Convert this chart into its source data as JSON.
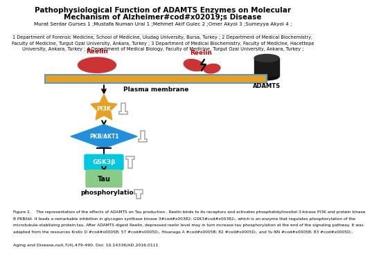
{
  "title_line1": "Pathophysiological Function of ADAMTS Enzymes on Molecular",
  "title_line2": "Mechanism of Alzheimer#cod#x02019;s Disease",
  "authors": "Murat Serdar Gurses 1 ;Mustafa Numan Ural 1 ;Mehmet Akif Gulec 2 ;Omer Akyol 3 ;Sumeyya Akyol 4 ;",
  "affiliations_line1": "1 Department of Forensic Medicine, School of Medicine, Uludag University, Bursa, Turkey ; 2 Department of Medical Biochemistry,",
  "affiliations_line2": "Faculty of Medicine, Turgut Ozal University, Ankara, Turkey ; 3 Department of Medical Biochemistry, Faculty of Medicine, Hacettepe",
  "affiliations_line3": "University, Ankara, Turkey ; 4 Department of Medical Biology, Faculty of Medicine, Turgut Ozal University, Ankara, Turkey ;",
  "caption_line1": "Figure 2.    The representation of the effects of ADAMTS on Tau production . Reelin binds to its receptors and activates phosphatidylinositol-3-kinase PI3K and protein kinase",
  "caption_line2": "B PKBAkt. It leads a remarkable inhibition in glycogen synthase kinase 3#cod#x00382; GSK3#cod#x00382;, which is an enzyme that regulates phosphorylation of the",
  "caption_line3": "microtubule-stabilizing protein tau. After ADAMTS digest Reelin, depressed reelin level may in turn increase tau phosphorylation at the end of the signaling pathway. It was",
  "caption_line4": "adapted from the resources Krstic D #cod#x0005B; 57 #cod#x0005D;, Hisanaga A #cod#x0005B; 82 #cod#x0005D;, and Yu NN #cod#x0005B; 83 #cod#x0005D;.",
  "journal": "Aging and Disease,null,7(4),479-490. Doi: 10.14336/AD.2016.0111",
  "bg_color": "#ffffff",
  "membrane_color": "#E8A020",
  "membrane_border": "#5599CC",
  "pi3k_color": "#E8A020",
  "pkb_color": "#2090DD",
  "gsk3b_color": "#00C8E0",
  "tau_color": "#88CC88",
  "reelin_color": "#CC3333",
  "adamts_color": "#111111",
  "arrow_color": "#111111",
  "hollow_arrow_color": "#aaaaaa",
  "reelin_label_color": "#CC0000",
  "membrane_label": "Plasma membrane",
  "pi3k_label": "PI3K",
  "pkb_label": "PKB/AKT1",
  "gsk3b_label": "GSK3β",
  "tau_label": "Tau",
  "phospho_label": "phosphorylation",
  "adamts_label": "ADAMTS",
  "reelin_label": "Reelin"
}
